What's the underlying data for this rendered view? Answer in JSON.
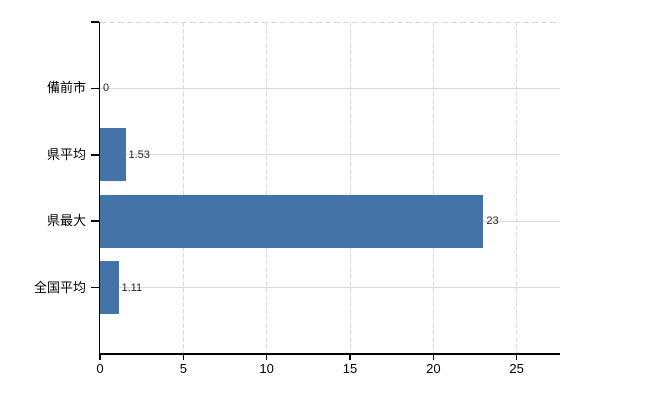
{
  "chart_data": {
    "type": "bar",
    "orientation": "horizontal",
    "title": "",
    "categories": [
      "備前市",
      "県平均",
      "県最大",
      "全国平均"
    ],
    "values": [
      0,
      1.53,
      23,
      1.11
    ],
    "value_labels": [
      "0",
      "1.53",
      "23",
      "1.11"
    ],
    "xticks": [
      0,
      5,
      10,
      15,
      20,
      25
    ],
    "xtick_labels": [
      "0",
      "5",
      "10",
      "15",
      "20",
      "25"
    ],
    "xlim": [
      0,
      27.6
    ],
    "grid": true,
    "legend": false,
    "bar_color": "#4473a8",
    "gridline_color": "#d9d9d9",
    "axis_color": "#000000",
    "text_color": "#262626",
    "background_color": "#ffffff"
  }
}
